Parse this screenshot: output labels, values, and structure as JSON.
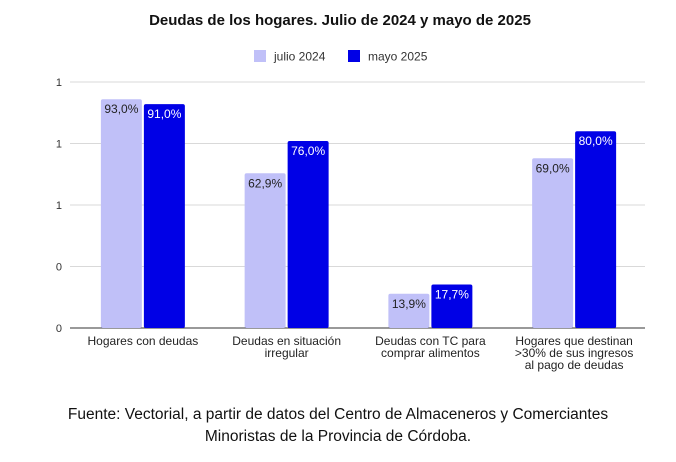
{
  "chart_data": {
    "type": "bar",
    "title": "Deudas de los hogares. Julio de 2024 y mayo de 2025",
    "categories": [
      [
        "Hogares con deudas"
      ],
      [
        "Deudas en situación",
        "irregular"
      ],
      [
        "Deudas con TC para",
        "comprar alimentos"
      ],
      [
        "Hogares que destinan",
        ">30% de sus ingresos",
        "al pago de deudas"
      ]
    ],
    "series": [
      {
        "name": "julio 2024",
        "color": "#c0c0f8",
        "values": [
          93.0,
          62.9,
          13.9,
          69.0
        ],
        "labels": [
          "93,0%",
          "62,9%",
          "13,9%",
          "69,0%"
        ]
      },
      {
        "name": "mayo 2025",
        "color": "#0000e6",
        "values": [
          91.0,
          76.0,
          17.7,
          80.0
        ],
        "labels": [
          "91,0%",
          "76,0%",
          "17,7%",
          "80,0%"
        ]
      }
    ],
    "y_ticks": [
      "0",
      "0",
      "1",
      "1",
      "1"
    ],
    "ylim": [
      0,
      100
    ],
    "grid": true,
    "legend_position": "top-center",
    "gridline_color": "#d9d9d9",
    "axis_color": "#333333"
  },
  "source": {
    "line1": "Fuente: Vectorial, a partir de datos del Centro de Almaceneros y Comerciantes",
    "line2": "Minoristas de la Provincia de Córdoba."
  }
}
